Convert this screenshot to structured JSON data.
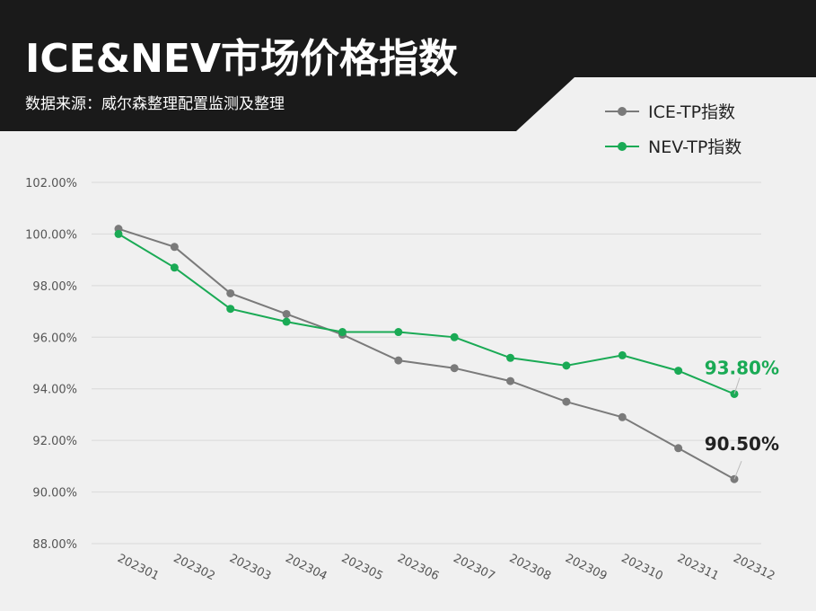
{
  "header": {
    "title": "ICE&NEV市场价格指数",
    "subtitle": "数据来源：威尔森整理配置监测及整理"
  },
  "legend": [
    {
      "label": "ICE-TP指数",
      "color": "#7a7a7a"
    },
    {
      "label": "NEV-TP指数",
      "color": "#1aaa55"
    }
  ],
  "callouts": {
    "nev_last": "93.80%",
    "ice_last": "90.50%"
  },
  "colors": {
    "header_bg": "#1a1a1a",
    "ice": "#7a7a7a",
    "nev": "#1aaa55",
    "grid": "#d9d9d9"
  },
  "chart_data": {
    "type": "line",
    "categories": [
      "202301",
      "202302",
      "202303",
      "202304",
      "202305",
      "202306",
      "202307",
      "202308",
      "202309",
      "202310",
      "202311",
      "202312"
    ],
    "series": [
      {
        "name": "ICE-TP指数",
        "values": [
          100.2,
          99.5,
          97.7,
          96.9,
          96.1,
          95.1,
          94.8,
          94.3,
          93.5,
          92.9,
          91.7,
          90.5
        ]
      },
      {
        "name": "NEV-TP指数",
        "values": [
          100.0,
          98.7,
          97.1,
          96.6,
          96.2,
          96.2,
          96.0,
          95.2,
          94.9,
          95.3,
          94.7,
          93.8
        ]
      }
    ],
    "ylim": [
      88,
      102
    ],
    "yticks": [
      "102.00%",
      "100.00%",
      "98.00%",
      "96.00%",
      "94.00%",
      "92.00%",
      "90.00%",
      "88.00%"
    ],
    "grid": true,
    "legend_position": "top-right"
  }
}
